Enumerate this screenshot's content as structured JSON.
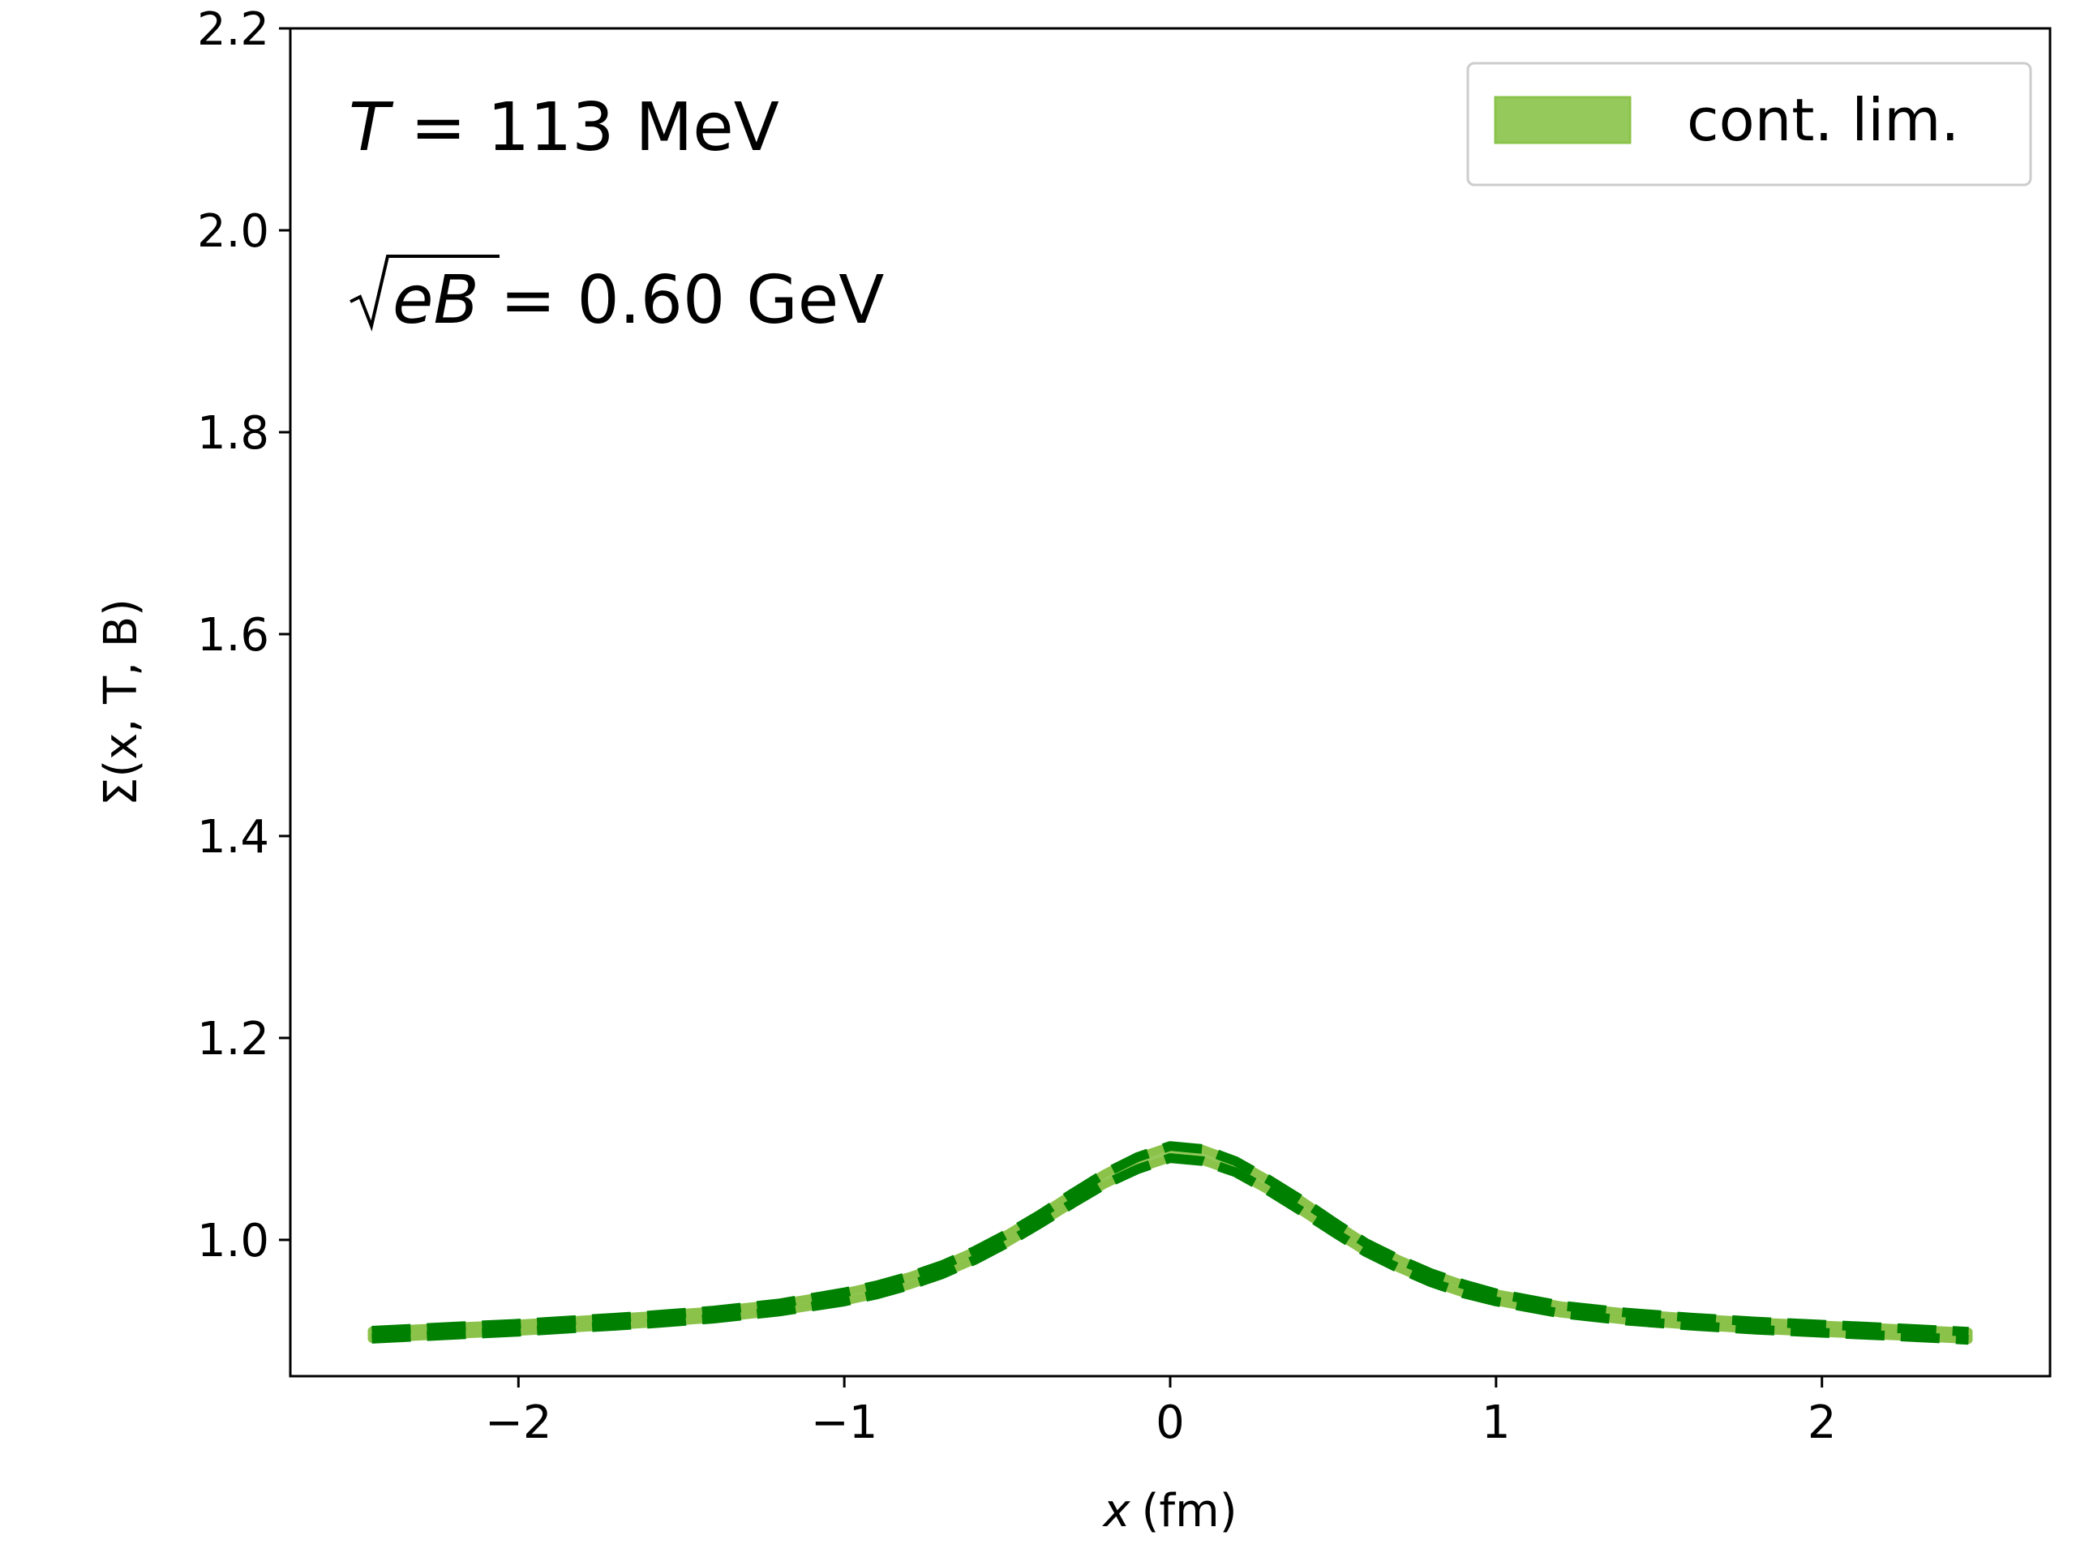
{
  "chart_data": {
    "type": "line",
    "xlabel_var": "x",
    "xlabel_unit": "(fm)",
    "ylabel_text": "Σ(x, T, B)",
    "xlim": [
      -2.7,
      2.7
    ],
    "ylim": [
      0.865,
      2.2
    ],
    "xticks": [
      -2,
      -1,
      0,
      1,
      2
    ],
    "xtick_labels": [
      "−2",
      "−1",
      "0",
      "1",
      "2"
    ],
    "yticks": [
      1.0,
      1.2,
      1.4,
      1.6,
      1.8,
      2.0,
      2.2
    ],
    "ytick_labels": [
      "1.0",
      "1.2",
      "1.4",
      "1.6",
      "1.8",
      "2.0",
      "2.2"
    ],
    "grid": false,
    "legend_position": "top-right",
    "annotations": {
      "temperature_var": "T",
      "temperature_rest": " = 113 MeV",
      "field_var": "eB",
      "field_rest": " = 0.60 GeV"
    },
    "series": [
      {
        "name": "cont. lim.",
        "style": "band",
        "color": "#8bc34a",
        "x": [
          -2.45,
          -2.2,
          -2.0,
          -1.8,
          -1.6,
          -1.4,
          -1.2,
          -1.0,
          -0.9,
          -0.8,
          -0.7,
          -0.6,
          -0.5,
          -0.4,
          -0.3,
          -0.2,
          -0.1,
          0.0,
          0.1,
          0.2,
          0.3,
          0.4,
          0.5,
          0.6,
          0.7,
          0.8,
          0.9,
          1.0,
          1.2,
          1.4,
          1.6,
          1.8,
          2.0,
          2.2,
          2.45
        ],
        "y_lower": [
          0.902,
          0.906,
          0.909,
          0.913,
          0.917,
          0.922,
          0.929,
          0.939,
          0.946,
          0.955,
          0.966,
          0.98,
          0.997,
          1.016,
          1.036,
          1.055,
          1.07,
          1.081,
          1.078,
          1.067,
          1.049,
          1.029,
          1.008,
          0.988,
          0.972,
          0.958,
          0.947,
          0.939,
          0.927,
          0.92,
          0.915,
          0.911,
          0.908,
          0.905,
          0.901
        ],
        "y_upper": [
          0.91,
          0.914,
          0.917,
          0.921,
          0.925,
          0.93,
          0.937,
          0.948,
          0.955,
          0.964,
          0.975,
          0.989,
          1.006,
          1.025,
          1.046,
          1.066,
          1.082,
          1.093,
          1.09,
          1.078,
          1.06,
          1.04,
          1.018,
          0.997,
          0.981,
          0.967,
          0.956,
          0.947,
          0.935,
          0.928,
          0.923,
          0.919,
          0.916,
          0.913,
          0.909
        ]
      },
      {
        "name": "",
        "style": "dashed",
        "color": "#008000",
        "x": [
          -2.45,
          -2.2,
          -2.0,
          -1.8,
          -1.6,
          -1.4,
          -1.2,
          -1.0,
          -0.9,
          -0.8,
          -0.7,
          -0.6,
          -0.5,
          -0.4,
          -0.3,
          -0.2,
          -0.1,
          0.0,
          0.1,
          0.2,
          0.3,
          0.4,
          0.5,
          0.6,
          0.7,
          0.8,
          0.9,
          1.0,
          1.2,
          1.4,
          1.6,
          1.8,
          2.0,
          2.2,
          2.45
        ],
        "y": [
          0.902,
          0.906,
          0.909,
          0.913,
          0.917,
          0.922,
          0.929,
          0.939,
          0.946,
          0.955,
          0.966,
          0.98,
          0.997,
          1.016,
          1.036,
          1.055,
          1.07,
          1.081,
          1.078,
          1.067,
          1.049,
          1.029,
          1.008,
          0.988,
          0.972,
          0.958,
          0.947,
          0.939,
          0.927,
          0.92,
          0.915,
          0.911,
          0.908,
          0.905,
          0.901
        ]
      },
      {
        "name": "",
        "style": "dashed",
        "color": "#008000",
        "x": [
          -2.45,
          -2.2,
          -2.0,
          -1.8,
          -1.6,
          -1.4,
          -1.2,
          -1.0,
          -0.9,
          -0.8,
          -0.7,
          -0.6,
          -0.5,
          -0.4,
          -0.3,
          -0.2,
          -0.1,
          0.0,
          0.1,
          0.2,
          0.3,
          0.4,
          0.5,
          0.6,
          0.7,
          0.8,
          0.9,
          1.0,
          1.2,
          1.4,
          1.6,
          1.8,
          2.0,
          2.2,
          2.45
        ],
        "y": [
          0.91,
          0.914,
          0.917,
          0.921,
          0.925,
          0.93,
          0.937,
          0.948,
          0.955,
          0.964,
          0.975,
          0.989,
          1.006,
          1.025,
          1.046,
          1.066,
          1.082,
          1.093,
          1.09,
          1.078,
          1.06,
          1.04,
          1.018,
          0.997,
          0.981,
          0.967,
          0.956,
          0.947,
          0.935,
          0.928,
          0.923,
          0.919,
          0.916,
          0.913,
          0.909
        ]
      }
    ]
  }
}
